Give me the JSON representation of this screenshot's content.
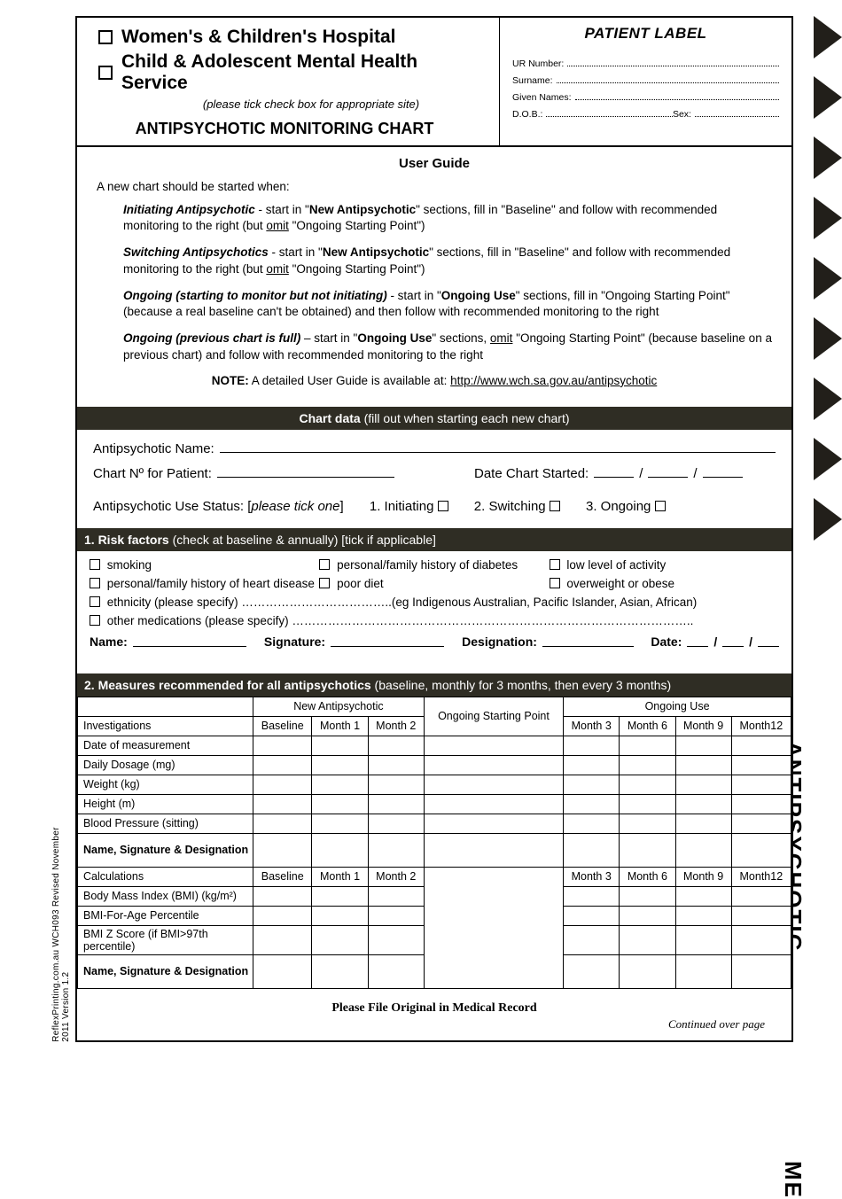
{
  "colors": {
    "bar_bg": "#2f2d24",
    "page_bg": "#ffffff",
    "text": "#000000"
  },
  "header": {
    "site1": "Women's & Children's Hospital",
    "site2": "Child & Adolescent Mental Health Service",
    "tick_note": "(please tick check box for appropriate site)",
    "main_title": "ANTIPSYCHOTIC MONITORING CHART",
    "patient_label": "PATIENT LABEL",
    "ur": "UR Number:",
    "surname": "Surname:",
    "given": "Given Names:",
    "dob": "D.O.B.:",
    "sex": "Sex:"
  },
  "user_guide": {
    "title": "User Guide",
    "intro": "A new chart should be started when:",
    "items": [
      {
        "lead": "Initiating Antipsychotic",
        "txt1": " - start in \"",
        "b1": "New Antipsychotic",
        "txt2": "\" sections, fill in \"Baseline\" and follow with recommended monitoring to the right (but ",
        "u": "omit",
        "txt3": " \"Ongoing Starting Point\")"
      },
      {
        "lead": "Switching Antipsychotics",
        "txt1": " - start in \"",
        "b1": "New Antipsychotic",
        "txt2": "\" sections, fill in \"Baseline\" and follow with recommended monitoring to the right  (but ",
        "u": "omit",
        "txt3": " \"Ongoing Starting Point\")"
      },
      {
        "lead": "Ongoing (starting to monitor but not initiating)",
        "txt1": " - start in \"",
        "b1": "Ongoing Use",
        "txt2": "\" sections, fill in \"Ongoing Starting Point\" (because a real baseline can't be obtained) and then follow with recommended monitoring to the right",
        "u": "",
        "txt3": ""
      },
      {
        "lead": "Ongoing (previous chart is full)",
        "txt1": " – start in \"",
        "b1": "Ongoing Use",
        "txt2": "\" sections, ",
        "u": "omit",
        "txt3": " \"Ongoing Starting Point\" (because baseline on a previous chart) and follow with recommended monitoring to the right"
      }
    ],
    "note_lead": "NOTE:",
    "note_txt": " A detailed User Guide is available at: ",
    "note_link": "http://www.wch.sa.gov.au/antipsychotic"
  },
  "chart_data_bar": {
    "lead": "Chart data",
    "rest": "  (fill out when starting each new chart)"
  },
  "chart_data": {
    "name_lbl": "Antipsychotic Name:",
    "chartno_lbl": "Chart Nº for Patient:",
    "date_lbl": "Date Chart Started:",
    "status_lbl": "Antipsychotic Use Status: [",
    "status_it": "please tick one",
    "status_end": "]",
    "opts": [
      "1. Initiating",
      "2. Switching",
      "3. Ongoing"
    ]
  },
  "risk_bar": {
    "lead": "1. Risk factors",
    "rest": "  (check at baseline & annually)  [tick if applicable]"
  },
  "risk": {
    "items": [
      "smoking",
      "personal/family history of diabetes",
      "low level of activity",
      "personal/family history of heart disease",
      "poor diet",
      "overweight or obese"
    ],
    "eth": "ethnicity (please specify) ………………………………..(eg Indigenous Australian, Pacific Islander, Asian, African)",
    "meds": "other medications (please specify) ………………………………………………………………………………………..",
    "sig": {
      "name": "Name:",
      "signature": "Signature:",
      "desig": "Designation:",
      "date": "Date:"
    }
  },
  "meas_bar": {
    "lead": "2. Measures recommended for all antipsychotics",
    "rest": "  (baseline, monthly for 3 months, then every 3 months)"
  },
  "meas": {
    "group_new": "New Antipsychotic",
    "group_sp": "Ongoing Starting Point",
    "group_ong": "Ongoing Use",
    "inv_hdr": "Investigations",
    "calc_hdr": "Calculations",
    "cols_new": [
      "Baseline",
      "Month 1",
      "Month 2"
    ],
    "cols_ong": [
      "Month 3",
      "Month 6",
      "Month 9",
      "Month12"
    ],
    "rows_inv": [
      "Date of measurement",
      "Daily Dosage (mg)",
      "Weight (kg)",
      "Height (m)",
      "Blood Pressure (sitting)"
    ],
    "sig_row": "Name, Signature & Designation",
    "rows_calc": [
      "Body Mass Index (BMI) (kg/m²)",
      "BMI-For-Age Percentile",
      "BMI Z Score (if BMI>97th percentile)"
    ]
  },
  "footer": {
    "file": "Please File Original in Medical Record",
    "cont": "Continued over page"
  },
  "side": {
    "main": "ANTIPSYCHOTIC MONITORING CHART",
    "me": "ME"
  },
  "left_text": "ReflexPrinting.com.au  WCH093    Revised November 2011    Version 1.2"
}
